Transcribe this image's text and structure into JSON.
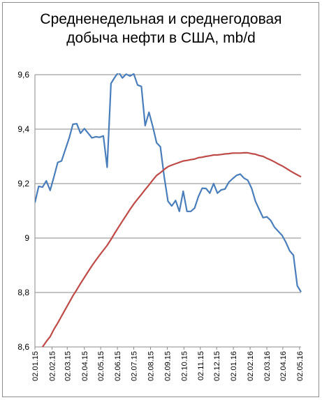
{
  "chart_data": {
    "type": "line",
    "title_lines": [
      "Средненедельная и среднегодовая",
      "добыча нефти в США, mb/d"
    ],
    "xlabel": "",
    "ylabel": "",
    "ylim": [
      8.6,
      9.6
    ],
    "yticks": [
      "8,6",
      "8,8",
      "9",
      "9,2",
      "9,4",
      "9,6"
    ],
    "ytick_values": [
      8.6,
      8.8,
      9.0,
      9.2,
      9.4,
      9.6
    ],
    "xticks": [
      "02.01.15",
      "02.02.15",
      "02.03.15",
      "02.04.15",
      "02.05.15",
      "02.06.15",
      "02.07.15",
      "02.08.15",
      "02.09.15",
      "02.10.15",
      "02.11.15",
      "02.12.15",
      "02.01.16",
      "02.02.16",
      "02.03.16",
      "02.04.16",
      "02.05.16"
    ],
    "xtick_weeks": [
      0,
      4.5,
      8.5,
      13,
      17.3,
      21.7,
      26,
      30.4,
      34.8,
      39.2,
      43.5,
      47.8,
      52.2,
      56.6,
      61,
      65.2,
      69.6
    ],
    "grid": "horizontal",
    "legend": "none",
    "series": [
      {
        "color": "#4a7ebb",
        "x": [
          0,
          1,
          2,
          3,
          4,
          5,
          6,
          7,
          8,
          9,
          10,
          11,
          12,
          13,
          14,
          15,
          16,
          17,
          18,
          19,
          20,
          21,
          22,
          23,
          24,
          25,
          26,
          27,
          28,
          29,
          30,
          31,
          32,
          33,
          34,
          35,
          36,
          37,
          38,
          39,
          40,
          41,
          42,
          43,
          44,
          45,
          46,
          47,
          48,
          49,
          50,
          51,
          52,
          53,
          54,
          55,
          56,
          57,
          58,
          59,
          60,
          61,
          62,
          63,
          64,
          65,
          66,
          67,
          68,
          69,
          70
        ],
        "values": [
          9.13,
          9.19,
          9.187,
          9.21,
          9.175,
          9.225,
          9.278,
          9.283,
          9.325,
          9.367,
          9.418,
          9.42,
          9.385,
          9.402,
          9.385,
          9.368,
          9.372,
          9.37,
          9.375,
          9.26,
          9.568,
          9.59,
          9.61,
          9.588,
          9.602,
          9.595,
          9.603,
          9.562,
          9.557,
          9.413,
          9.462,
          9.41,
          9.35,
          9.335,
          9.225,
          9.135,
          9.118,
          9.138,
          9.098,
          9.172,
          9.098,
          9.098,
          9.11,
          9.152,
          9.183,
          9.182,
          9.165,
          9.2,
          9.165,
          9.177,
          9.18,
          9.205,
          9.218,
          9.23,
          9.235,
          9.22,
          9.212,
          9.183,
          9.135,
          9.105,
          9.075,
          9.078,
          9.065,
          9.04,
          9.025,
          9.01,
          8.985,
          8.953,
          8.937,
          8.825,
          8.802
        ]
      },
      {
        "color": "#be4b48",
        "x": [
          0,
          1,
          2,
          3,
          4,
          5,
          6,
          7,
          8,
          9,
          10,
          11,
          12,
          13,
          14,
          15,
          16,
          17,
          18,
          19,
          20,
          21,
          22,
          23,
          24,
          25,
          26,
          27,
          28,
          29,
          30,
          31,
          32,
          33,
          34,
          35,
          36,
          37,
          38,
          39,
          40,
          41,
          42,
          43,
          44,
          45,
          46,
          47,
          48,
          49,
          50,
          51,
          52,
          53,
          54,
          55,
          56,
          57,
          58,
          59,
          60,
          61,
          62,
          63,
          64,
          65,
          66,
          67,
          68,
          69,
          70
        ],
        "values": [
          8.555,
          8.575,
          8.6,
          8.62,
          8.638,
          8.665,
          8.688,
          8.713,
          8.738,
          8.763,
          8.788,
          8.81,
          8.833,
          8.855,
          8.877,
          8.898,
          8.918,
          8.937,
          8.955,
          8.973,
          8.995,
          9.018,
          9.04,
          9.062,
          9.083,
          9.105,
          9.125,
          9.143,
          9.16,
          9.178,
          9.195,
          9.213,
          9.23,
          9.24,
          9.252,
          9.262,
          9.268,
          9.273,
          9.278,
          9.283,
          9.285,
          9.288,
          9.29,
          9.295,
          9.297,
          9.3,
          9.302,
          9.305,
          9.305,
          9.307,
          9.309,
          9.31,
          9.312,
          9.312,
          9.312,
          9.313,
          9.313,
          9.31,
          9.308,
          9.303,
          9.3,
          9.293,
          9.287,
          9.28,
          9.272,
          9.265,
          9.257,
          9.248,
          9.24,
          9.232,
          9.225
        ]
      }
    ]
  }
}
